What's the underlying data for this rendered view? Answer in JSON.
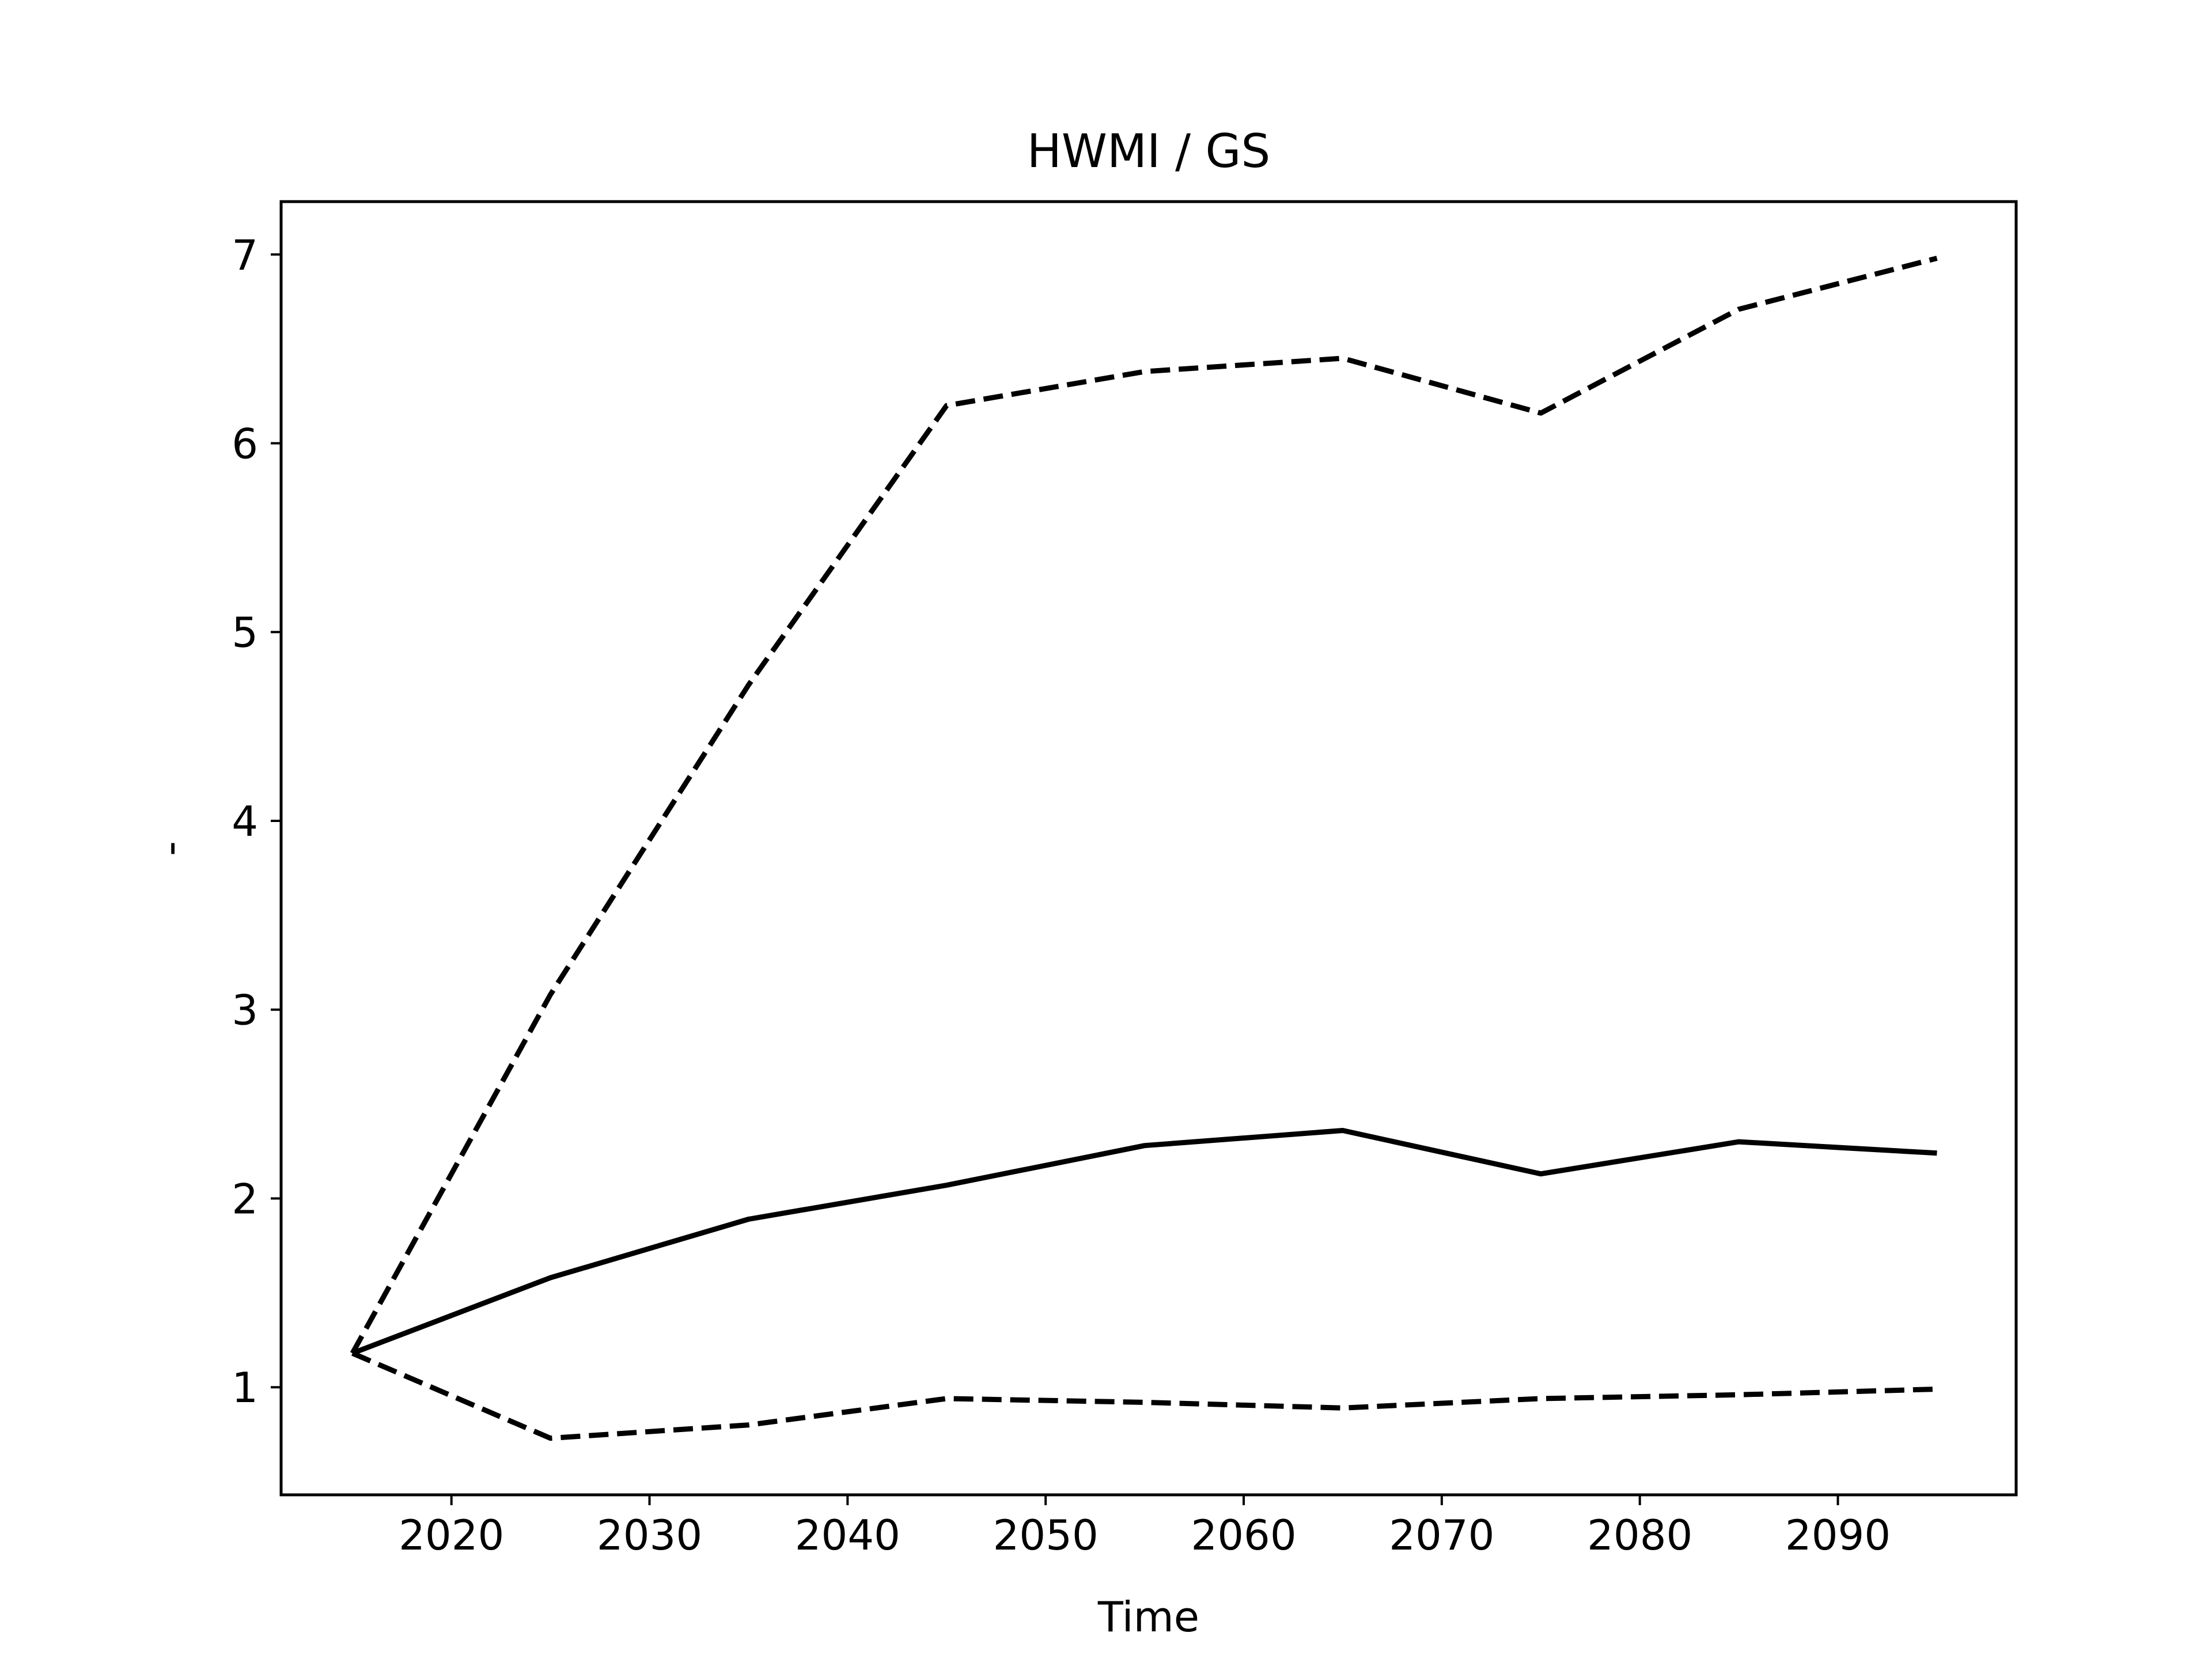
{
  "chart_data": {
    "type": "line",
    "title": "HWMI / GS",
    "xlabel": "Time",
    "ylabel": "-",
    "xlim": [
      2011.4,
      2099.0
    ],
    "ylim": [
      0.43,
      7.28
    ],
    "xticks": [
      2020,
      2030,
      2040,
      2050,
      2060,
      2070,
      2080,
      2090
    ],
    "yticks": [
      1,
      2,
      3,
      4,
      5,
      6,
      7
    ],
    "grid": false,
    "legend": "none",
    "x": [
      2015,
      2025,
      2035,
      2045,
      2055,
      2065,
      2075,
      2085,
      2095
    ],
    "series": [
      {
        "style": "dashed",
        "color": "#000000",
        "values": [
          1.18,
          3.08,
          4.72,
          6.2,
          6.38,
          6.45,
          6.16,
          6.71,
          6.98
        ]
      },
      {
        "style": "solid",
        "color": "#000000",
        "values": [
          1.18,
          1.58,
          1.89,
          2.07,
          2.28,
          2.36,
          2.13,
          2.3,
          2.24
        ]
      },
      {
        "style": "dashed",
        "color": "#000000",
        "values": [
          1.18,
          0.73,
          0.8,
          0.94,
          0.92,
          0.89,
          0.94,
          0.96,
          0.99
        ]
      }
    ]
  }
}
